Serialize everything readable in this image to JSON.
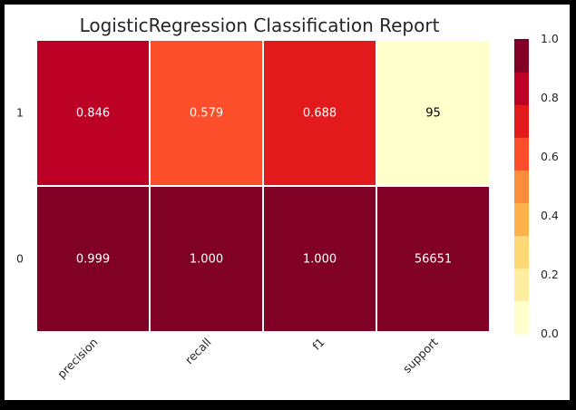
{
  "chart_data": {
    "type": "heatmap",
    "title": "LogisticRegression Classification Report",
    "columns": [
      "precision",
      "recall",
      "f1",
      "support"
    ],
    "rows": [
      "1",
      "0"
    ],
    "values": [
      [
        0.846,
        0.579,
        0.688,
        95
      ],
      [
        0.999,
        1.0,
        1.0,
        56651
      ]
    ],
    "labels": [
      [
        "0.846",
        "0.579",
        "0.688",
        "95"
      ],
      [
        "0.999",
        "1.000",
        "1.000",
        "56651"
      ]
    ],
    "color_levels": [
      0.846,
      0.579,
      0.688,
      0.0017,
      0.999,
      1.0,
      1.0,
      1.0
    ],
    "colorbar": {
      "range": [
        0.0,
        1.0
      ],
      "ticks": [
        "0.0",
        "0.2",
        "0.4",
        "0.6",
        "0.8",
        "1.0"
      ],
      "palette": [
        "#ffffcc",
        "#ffeda0",
        "#fed976",
        "#feb24c",
        "#fd8d3c",
        "#fc4e2a",
        "#e31a1c",
        "#bd0026",
        "#800026"
      ]
    },
    "grid": false,
    "text_colors": {
      "dark_cells": "#ffffff",
      "light_cells": "#000000"
    }
  }
}
